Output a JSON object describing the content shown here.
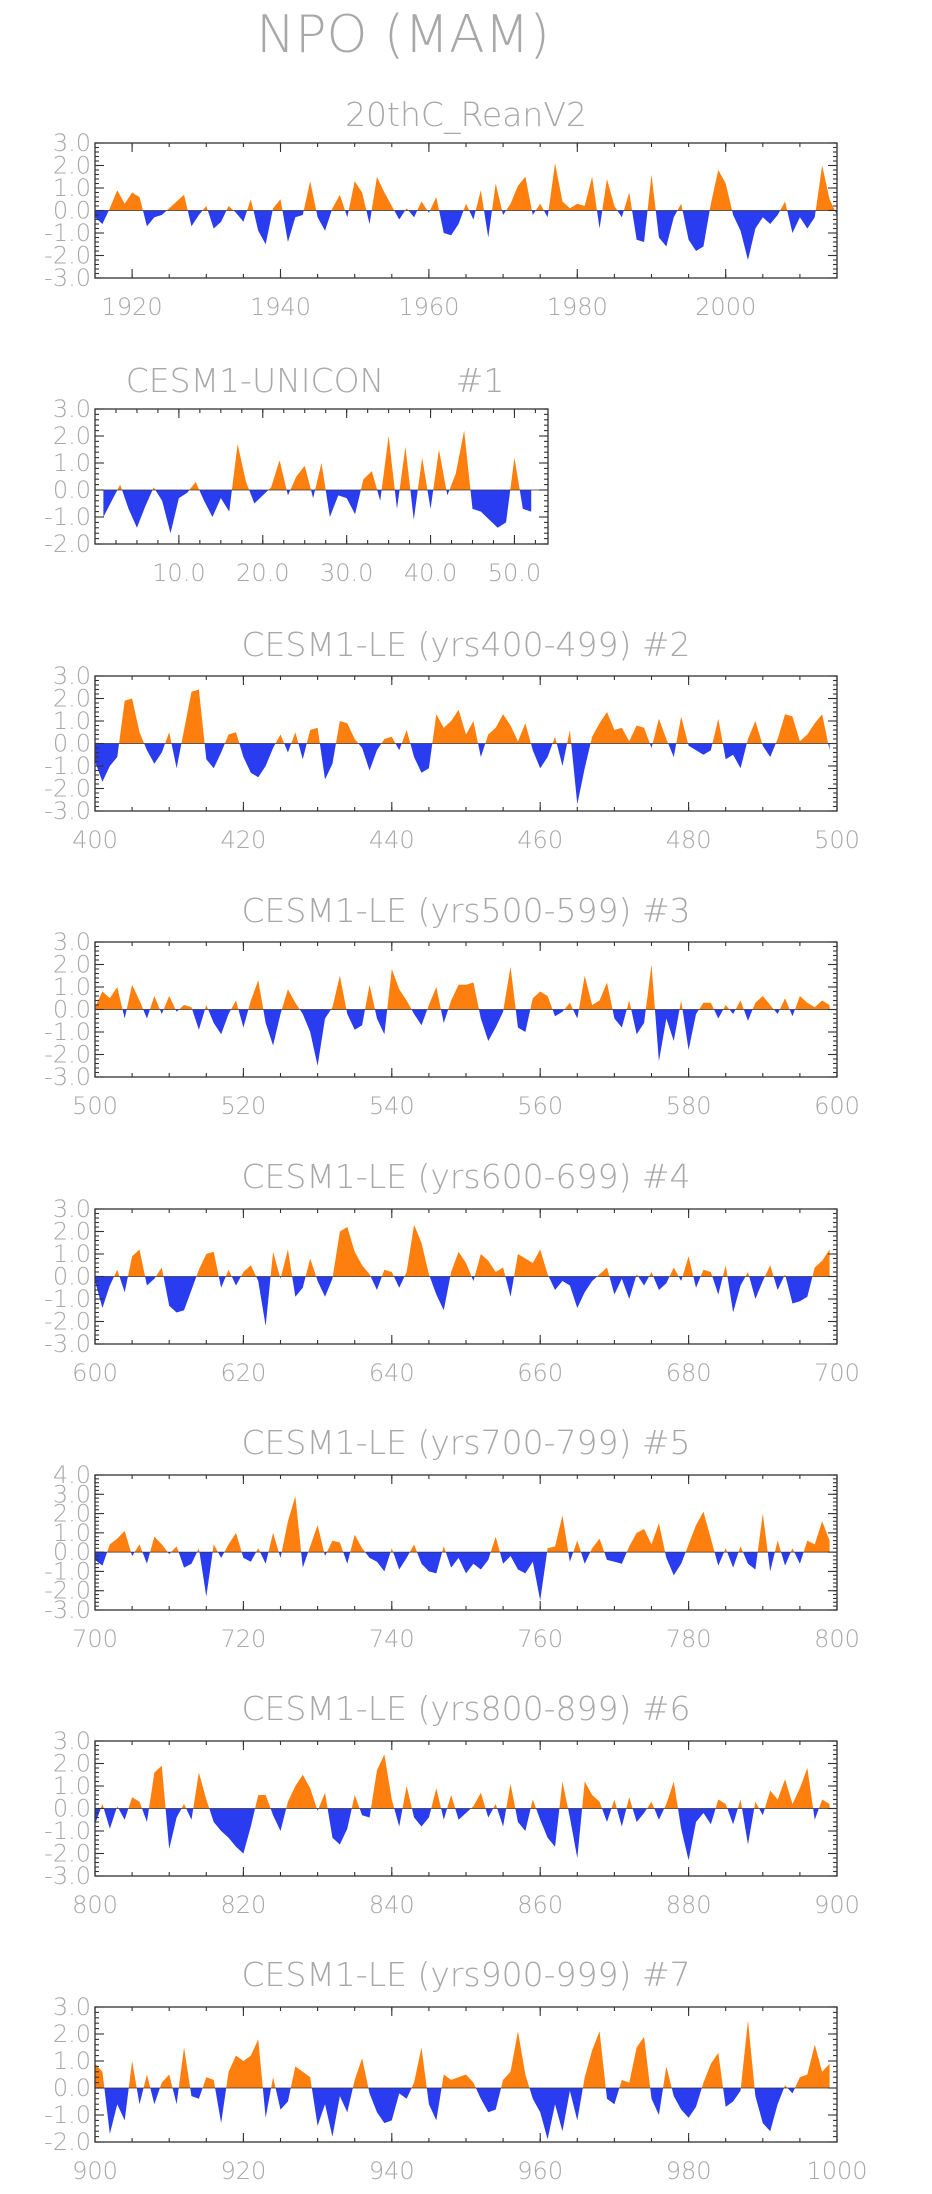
{
  "figure_title": "NPO (MAM)",
  "colors": {
    "positive": "#ff7f0e",
    "negative": "#2a3cf0",
    "text": "#a8a8a8",
    "axis": "#333333"
  },
  "chart_data": [
    {
      "type": "area",
      "title": "20thC_ReanV2",
      "member": "",
      "xlim": [
        1915,
        2015
      ],
      "ylim": [
        -3.0,
        3.0
      ],
      "yticks": [
        "3.0",
        "2.0",
        "1.0",
        "0.0",
        "-1.0",
        "-2.0",
        "-3.0"
      ],
      "xticks": [
        1920,
        1940,
        1960,
        1980,
        2000
      ],
      "xtick_labels": [
        "1920",
        "1940",
        "1960",
        "1980",
        "2000"
      ],
      "x_start": 1915,
      "x_step": 1,
      "values": [
        -0.3,
        -0.6,
        0.1,
        0.9,
        0.3,
        0.8,
        0.6,
        -0.7,
        -0.3,
        -0.2,
        0.1,
        0.4,
        0.7,
        -0.7,
        -0.2,
        0.2,
        -0.8,
        -0.5,
        0.2,
        -0.1,
        -0.5,
        0.5,
        -0.9,
        -1.5,
        0.1,
        0.5,
        -1.4,
        -0.3,
        -0.2,
        1.3,
        -0.3,
        -0.9,
        0.1,
        0.7,
        -0.3,
        1.3,
        0.8,
        -0.6,
        1.5,
        0.8,
        0.2,
        -0.4,
        0.1,
        -0.3,
        0.4,
        -0.1,
        0.6,
        -1.0,
        -1.1,
        -0.6,
        0.3,
        -0.4,
        0.9,
        -1.2,
        1.2,
        -0.2,
        0.3,
        1.1,
        1.5,
        -0.2,
        0.3,
        -0.3,
        2.1,
        0.4,
        0.1,
        0.3,
        0.2,
        1.5,
        -0.8,
        1.4,
        0.2,
        -0.3,
        0.8,
        -1.3,
        -1.4,
        1.6,
        -1.2,
        -1.6,
        -0.3,
        0.3,
        -1.3,
        -1.8,
        -1.6,
        0.3,
        1.8,
        1.2,
        -0.2,
        -0.9,
        -2.2,
        -0.8,
        -0.3,
        -0.6,
        -0.2,
        0.4,
        -1.0,
        -0.3,
        -0.8,
        -0.3,
        2.0,
        0.5,
        -0.2
      ],
      "box_frac": 0.9
    },
    {
      "type": "area",
      "title": "CESM1-UNICON",
      "member": "#1",
      "xlim": [
        0,
        54
      ],
      "ylim": [
        -2.0,
        3.0
      ],
      "yticks": [
        "3.0",
        "2.0",
        "1.0",
        "0.0",
        "-1.0",
        "-2.0"
      ],
      "xticks": [
        10,
        20,
        30,
        40,
        50
      ],
      "xtick_labels": [
        "10.0",
        "20.0",
        "30.0",
        "40.0",
        "50.0"
      ],
      "x_start": 1,
      "x_step": 1,
      "values": [
        -1.0,
        -0.4,
        0.2,
        -0.7,
        -1.4,
        -0.6,
        0.1,
        -0.4,
        -1.6,
        -0.3,
        -0.1,
        0.3,
        -0.4,
        -1.0,
        -0.3,
        -0.8,
        1.7,
        0.3,
        -0.5,
        -0.2,
        0.1,
        1.1,
        -0.2,
        0.5,
        0.9,
        -0.3,
        1.0,
        -1.0,
        -0.2,
        -0.3,
        -0.9,
        0.4,
        0.7,
        -0.4,
        2.0,
        -0.7,
        1.6,
        -1.1,
        1.2,
        -0.7,
        1.5,
        -0.2,
        0.6,
        2.2,
        -0.7,
        -0.8,
        -1.1,
        -1.4,
        -1.2,
        1.2,
        -0.7,
        -0.8
      ],
      "box_frac": 0.55
    },
    {
      "type": "area",
      "title": "CESM1-LE (yrs400-499)",
      "member": "#2",
      "xlim": [
        400,
        500
      ],
      "ylim": [
        -3.0,
        3.0
      ],
      "yticks": [
        "3.0",
        "2.0",
        "1.0",
        "0.0",
        "-1.0",
        "-2.0",
        "-3.0"
      ],
      "xticks": [
        400,
        420,
        440,
        460,
        480,
        500
      ],
      "xtick_labels": [
        "400",
        "420",
        "440",
        "460",
        "480",
        "500"
      ],
      "x_start": 400,
      "x_step": 1,
      "values": [
        -0.8,
        -1.7,
        -1.0,
        -0.6,
        1.9,
        2.0,
        0.5,
        -0.3,
        -0.9,
        -0.4,
        0.5,
        -1.1,
        0.6,
        2.3,
        2.4,
        -0.7,
        -1.1,
        -0.4,
        0.4,
        0.5,
        -0.6,
        -1.3,
        -1.5,
        -1.0,
        -0.2,
        0.4,
        -0.4,
        0.5,
        -0.7,
        0.6,
        0.7,
        -1.6,
        -0.9,
        1.0,
        0.9,
        0.2,
        -0.2,
        -1.2,
        -0.3,
        0.2,
        0.3,
        -0.3,
        0.6,
        -0.6,
        -1.3,
        -1.1,
        1.3,
        0.7,
        1.0,
        1.5,
        0.4,
        1.0,
        -0.6,
        0.4,
        0.7,
        1.3,
        0.8,
        0.1,
        0.9,
        -0.3,
        -1.1,
        -0.6,
        0.3,
        -1.0,
        0.6,
        -2.7,
        -1.1,
        0.3,
        0.9,
        1.4,
        0.6,
        0.7,
        0.1,
        0.8,
        0.7,
        -0.2,
        1.1,
        0.2,
        -0.6,
        1.2,
        -0.1,
        -0.3,
        -0.5,
        -0.3,
        1.1,
        -0.7,
        -0.5,
        -1.1,
        0.2,
        1.0,
        -0.1,
        -0.6,
        0.2,
        1.3,
        1.2,
        0.1,
        0.4,
        0.9,
        1.3,
        -0.3
      ],
      "box_frac": 0.9
    },
    {
      "type": "area",
      "title": "CESM1-LE (yrs500-599)",
      "member": "#3",
      "xlim": [
        500,
        600
      ],
      "ylim": [
        -3.0,
        3.0
      ],
      "yticks": [
        "3.0",
        "2.0",
        "1.0",
        "0.0",
        "-1.0",
        "-2.0",
        "-3.0"
      ],
      "xticks": [
        500,
        520,
        540,
        560,
        580,
        600
      ],
      "xtick_labels": [
        "500",
        "520",
        "540",
        "560",
        "580",
        "600"
      ],
      "x_start": 500,
      "x_step": 1,
      "values": [
        0.1,
        0.8,
        0.5,
        1.0,
        -0.4,
        1.1,
        0.4,
        -0.4,
        0.6,
        -0.2,
        0.6,
        -0.1,
        0.2,
        0.1,
        -0.9,
        0.2,
        -0.6,
        -1.1,
        -0.2,
        0.4,
        -0.8,
        0.4,
        1.3,
        -0.6,
        -1.6,
        -0.2,
        0.9,
        0.3,
        -0.2,
        -1.0,
        -2.5,
        -0.4,
        0.1,
        1.5,
        -0.2,
        -0.9,
        -0.7,
        1.1,
        -0.4,
        -1.1,
        1.8,
        0.9,
        0.4,
        -0.2,
        -0.7,
        0.2,
        1.0,
        -0.6,
        0.4,
        1.1,
        1.1,
        1.2,
        -0.4,
        -1.4,
        -0.8,
        -0.1,
        1.9,
        -0.8,
        -1.0,
        0.5,
        0.8,
        0.6,
        -0.3,
        -0.1,
        0.3,
        -0.4,
        1.5,
        0.2,
        0.4,
        1.2,
        -0.4,
        -0.8,
        0.4,
        -1.1,
        -0.6,
        2.0,
        -2.3,
        -0.4,
        -1.4,
        0.4,
        -1.8,
        -0.2,
        0.3,
        0.3,
        -0.4,
        0.2,
        -0.2,
        0.4,
        -0.5,
        0.3,
        0.6,
        0.2,
        -0.2,
        0.5,
        -0.3,
        0.6,
        0.3,
        0.1,
        0.4,
        0.2
      ],
      "box_frac": 0.9
    },
    {
      "type": "area",
      "title": "CESM1-LE (yrs600-699)",
      "member": "#4",
      "xlim": [
        600,
        700
      ],
      "ylim": [
        -3.0,
        3.0
      ],
      "yticks": [
        "3.0",
        "2.0",
        "1.0",
        "0.0",
        "-1.0",
        "-2.0",
        "-3.0"
      ],
      "xticks": [
        600,
        620,
        640,
        660,
        680,
        700
      ],
      "xtick_labels": [
        "600",
        "620",
        "640",
        "660",
        "680",
        "700"
      ],
      "x_start": 600,
      "x_step": 1,
      "values": [
        -0.2,
        -1.4,
        -0.4,
        0.3,
        -0.7,
        0.9,
        1.2,
        -0.4,
        -0.1,
        0.4,
        -1.3,
        -1.6,
        -1.5,
        -0.6,
        0.3,
        1.0,
        1.1,
        -0.5,
        0.3,
        -0.4,
        0.2,
        0.5,
        -0.2,
        -2.2,
        1.1,
        -0.1,
        1.2,
        -0.9,
        -0.5,
        0.8,
        -0.2,
        -0.9,
        -0.1,
        2.0,
        2.2,
        1.1,
        0.5,
        0.1,
        -0.6,
        0.3,
        0.2,
        -0.5,
        0.2,
        2.3,
        1.5,
        0.1,
        -0.8,
        -1.5,
        0.2,
        1.1,
        0.6,
        -0.2,
        1.0,
        0.7,
        0.2,
        0.4,
        -0.9,
        1.0,
        0.8,
        0.6,
        1.2,
        0.1,
        -0.6,
        -0.2,
        -0.4,
        -1.4,
        -0.7,
        -0.2,
        0.1,
        0.4,
        -0.8,
        -0.1,
        -1.0,
        0.1,
        -0.4,
        0.2,
        -0.6,
        -0.3,
        0.4,
        -0.2,
        0.9,
        -0.5,
        0.3,
        0.2,
        -0.8,
        0.5,
        -1.6,
        -0.4,
        0.2,
        -1.0,
        -0.2,
        0.5,
        -0.6,
        0.1,
        -1.2,
        -1.1,
        -0.9,
        0.4,
        0.7,
        1.2
      ],
      "box_frac": 0.9
    },
    {
      "type": "area",
      "title": "CESM1-LE (yrs700-799)",
      "member": "#5",
      "xlim": [
        700,
        800
      ],
      "ylim": [
        -3.0,
        4.0
      ],
      "yticks": [
        "4.0",
        "3.0",
        "2.0",
        "1.0",
        "0.0",
        "-1.0",
        "-2.0",
        "-3.0"
      ],
      "xticks": [
        700,
        720,
        740,
        760,
        780,
        800
      ],
      "xtick_labels": [
        "700",
        "720",
        "740",
        "760",
        "780",
        "800"
      ],
      "x_start": 700,
      "x_step": 1,
      "values": [
        -0.4,
        -0.7,
        0.4,
        0.7,
        1.1,
        -0.2,
        0.4,
        -0.6,
        0.8,
        0.4,
        -0.1,
        0.3,
        -0.8,
        -0.6,
        0.2,
        -2.3,
        0.4,
        -0.3,
        0.4,
        1.0,
        -0.3,
        -0.5,
        0.2,
        -0.6,
        1.0,
        -0.3,
        1.6,
        2.9,
        -0.8,
        0.3,
        1.4,
        -0.2,
        0.6,
        0.5,
        -0.6,
        0.9,
        0.2,
        -0.3,
        -0.5,
        -1.0,
        0.2,
        -0.9,
        -0.3,
        0.4,
        -0.6,
        -1.0,
        -1.1,
        0.3,
        -0.8,
        -0.3,
        -1.1,
        -0.6,
        -0.9,
        -0.4,
        0.8,
        -0.6,
        -0.2,
        -0.9,
        -1.1,
        -0.5,
        -2.5,
        0.2,
        0.3,
        1.9,
        -0.5,
        0.6,
        -0.6,
        0.2,
        0.7,
        -0.4,
        -0.5,
        -0.6,
        0.3,
        1.0,
        1.2,
        0.4,
        1.5,
        -0.3,
        -1.2,
        -0.6,
        0.4,
        1.4,
        2.1,
        0.7,
        -0.7,
        0.2,
        -0.8,
        0.3,
        -0.6,
        -0.9,
        2.0,
        -1.0,
        0.6,
        -0.7,
        0.2,
        -0.6,
        0.6,
        0.4,
        1.6,
        0.6
      ],
      "box_frac": 0.9
    },
    {
      "type": "area",
      "title": "CESM1-LE (yrs800-899)",
      "member": "#6",
      "xlim": [
        800,
        900
      ],
      "ylim": [
        -3.0,
        3.0
      ],
      "yticks": [
        "3.0",
        "2.0",
        "1.0",
        "0.0",
        "-1.0",
        "-2.0",
        "-3.0"
      ],
      "xticks": [
        800,
        820,
        840,
        860,
        880,
        900
      ],
      "xtick_labels": [
        "800",
        "820",
        "840",
        "860",
        "880",
        "900"
      ],
      "x_start": 800,
      "x_step": 1,
      "values": [
        -0.7,
        0.2,
        -0.9,
        0.1,
        -0.5,
        0.5,
        0.3,
        -0.6,
        1.6,
        1.9,
        -1.8,
        -0.4,
        0.2,
        -0.5,
        1.6,
        0.4,
        -0.6,
        -1.0,
        -1.3,
        -1.7,
        -2.0,
        -0.8,
        0.6,
        0.6,
        -0.3,
        -1.0,
        0.3,
        1.0,
        1.5,
        0.9,
        -0.1,
        0.7,
        -1.3,
        -1.6,
        -0.9,
        0.6,
        -0.3,
        -0.4,
        1.7,
        2.4,
        0.4,
        -0.8,
        1.0,
        -0.4,
        -0.8,
        -0.4,
        0.9,
        -0.5,
        0.6,
        -0.5,
        -0.2,
        0.1,
        0.7,
        -0.4,
        0.2,
        -0.8,
        1.1,
        -0.6,
        -1.0,
        0.4,
        -0.5,
        -1.3,
        -1.7,
        1.2,
        -0.4,
        -2.2,
        1.2,
        0.6,
        0.3,
        -0.6,
        0.4,
        -0.8,
        0.5,
        -0.6,
        -0.2,
        0.3,
        -0.5,
        0.2,
        1.2,
        -0.9,
        -2.3,
        -0.6,
        -0.2,
        -0.7,
        0.4,
        0.2,
        -0.7,
        0.4,
        -1.6,
        0.3,
        -0.3,
        0.8,
        0.4,
        1.3,
        0.2,
        0.9,
        1.8,
        -0.5,
        0.4,
        0.2
      ],
      "box_frac": 0.9
    },
    {
      "type": "area",
      "title": "CESM1-LE (yrs900-999)",
      "member": "#7",
      "xlim": [
        900,
        1000
      ],
      "ylim": [
        -2.0,
        3.0
      ],
      "yticks": [
        "3.0",
        "2.0",
        "1.0",
        "0.0",
        "-1.0",
        "-2.0"
      ],
      "xticks": [
        900,
        920,
        940,
        960,
        980,
        1000
      ],
      "xtick_labels": [
        "900",
        "920",
        "940",
        "960",
        "980",
        "1000"
      ],
      "x_start": 900,
      "x_step": 1,
      "values": [
        0.9,
        0.6,
        -1.7,
        -0.6,
        -1.2,
        1.0,
        -0.6,
        0.5,
        -0.6,
        0.2,
        0.5,
        -0.6,
        1.5,
        -0.3,
        -0.4,
        0.4,
        0.3,
        -1.3,
        0.6,
        1.2,
        1.0,
        1.2,
        1.8,
        -1.1,
        0.4,
        -0.8,
        -0.5,
        0.8,
        0.6,
        0.4,
        -1.4,
        -0.6,
        -1.8,
        -0.3,
        -0.9,
        0.3,
        1.1,
        -0.2,
        -0.9,
        -1.3,
        -1.2,
        -0.2,
        -0.4,
        0.2,
        1.5,
        -0.6,
        -1.2,
        0.5,
        0.3,
        0.4,
        0.5,
        0.2,
        -0.4,
        -0.9,
        -0.8,
        0.3,
        0.6,
        2.1,
        0.5,
        -0.4,
        -0.9,
        -1.9,
        -0.6,
        -1.6,
        -0.1,
        -1.2,
        0.4,
        1.4,
        2.1,
        -0.4,
        -0.6,
        0.3,
        0.2,
        1.5,
        1.9,
        -0.4,
        -1.0,
        0.8,
        -0.3,
        -0.8,
        -1.1,
        -0.7,
        0.2,
        0.9,
        1.3,
        -0.7,
        -0.5,
        -0.1,
        2.5,
        -0.3,
        -1.3,
        -1.6,
        -0.6,
        0.1,
        -0.2,
        0.4,
        0.5,
        1.6,
        0.6,
        0.9
      ],
      "box_frac": 0.9
    }
  ]
}
